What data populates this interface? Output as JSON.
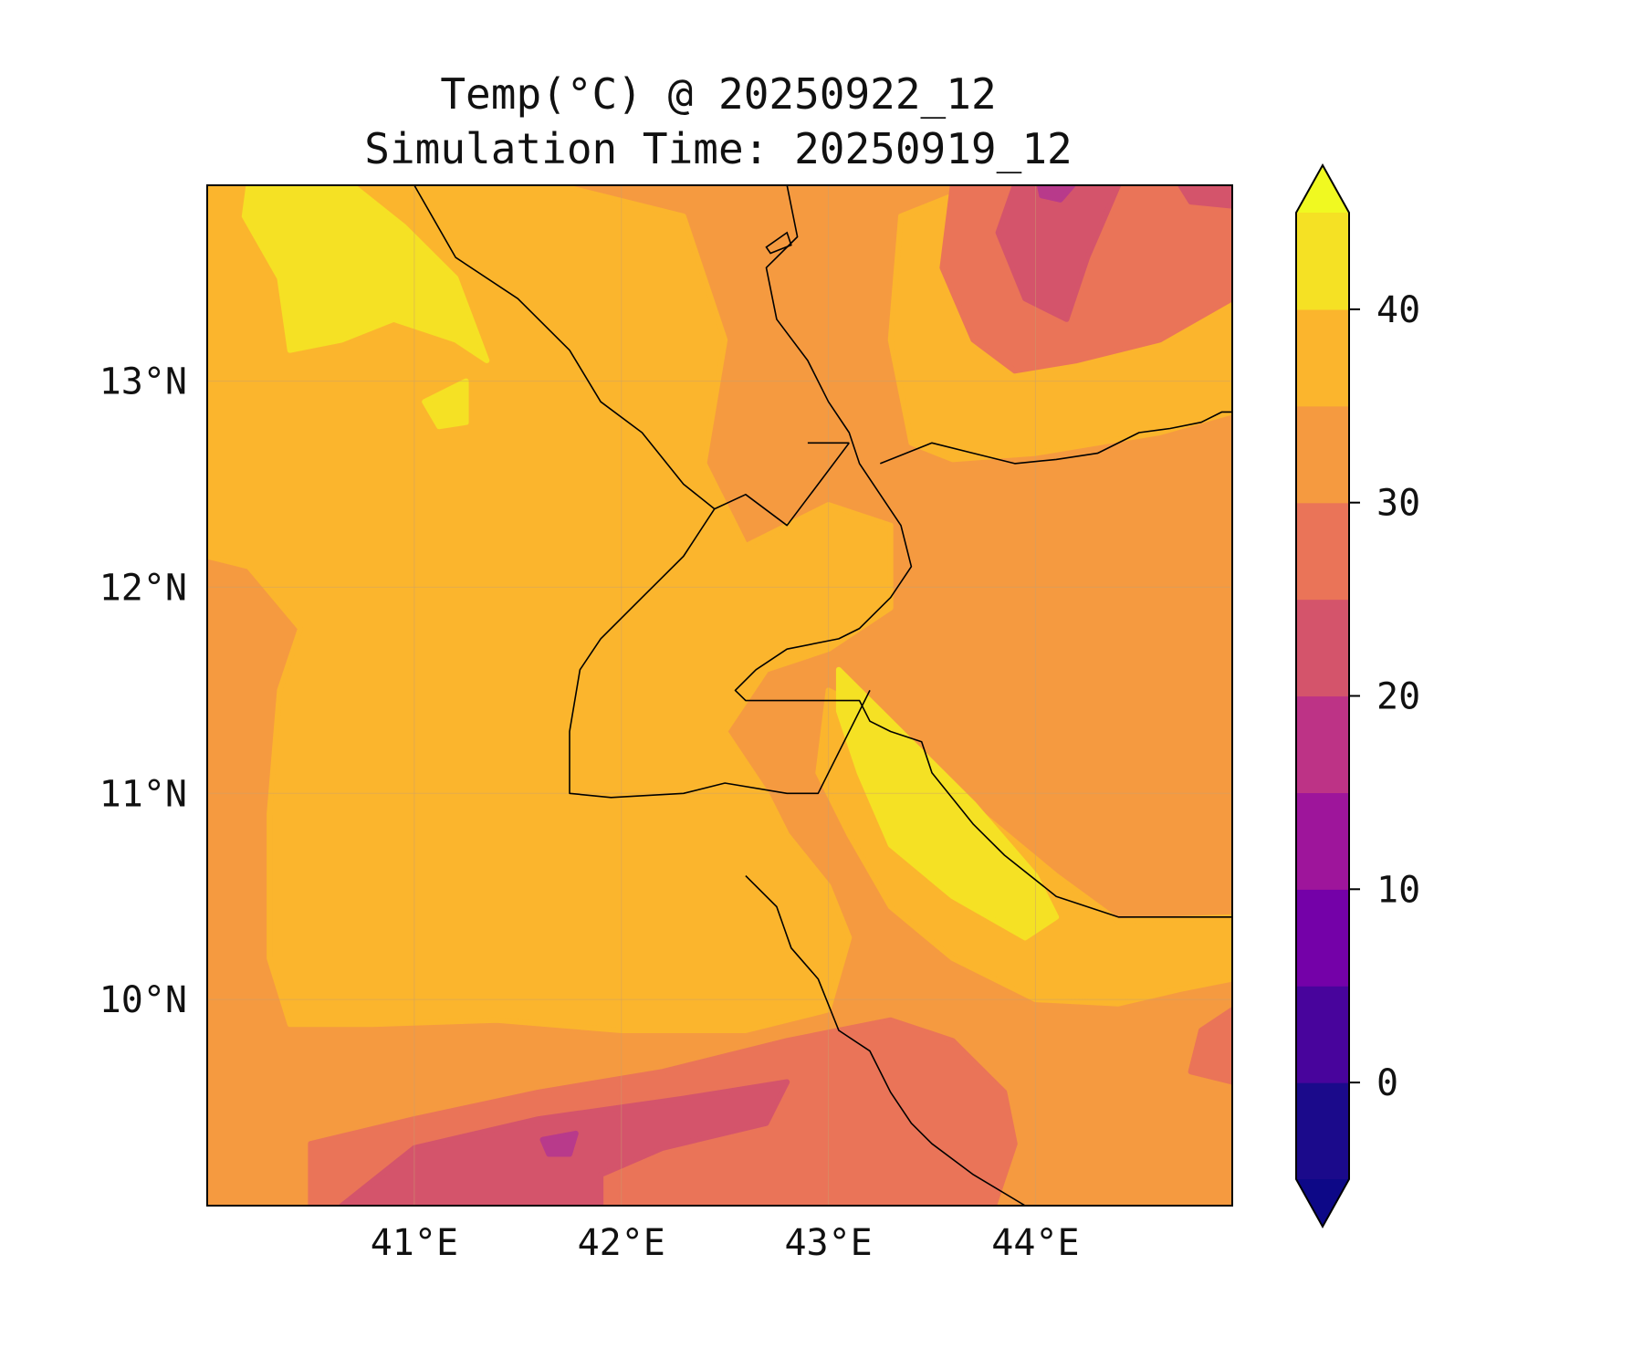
{
  "title": {
    "line1": "Temp(°C) @ 20250922_12",
    "line2": "Simulation Time: 20250919_12"
  },
  "map": {
    "lon_range": [
      40.0,
      44.95
    ],
    "lat_range": [
      9.0,
      13.95
    ],
    "lon_ticks": [
      {
        "value": 41,
        "label": "41°E"
      },
      {
        "value": 42,
        "label": "42°E"
      },
      {
        "value": 43,
        "label": "43°E"
      },
      {
        "value": 44,
        "label": "44°E"
      }
    ],
    "lat_ticks": [
      {
        "value": 13,
        "label": "13°N"
      },
      {
        "value": 12,
        "label": "12°N"
      },
      {
        "value": 11,
        "label": "11°N"
      },
      {
        "value": 10,
        "label": "10°N"
      }
    ],
    "gridlines": true,
    "background_color": "#f59a40",
    "regions": [
      {
        "name": "hot-highlands",
        "color": "#fbb52d",
        "points": [
          [
            40.0,
            13.95
          ],
          [
            41.7,
            13.95
          ],
          [
            42.3,
            13.8
          ],
          [
            42.5,
            13.2
          ],
          [
            42.4,
            12.6
          ],
          [
            42.6,
            12.2
          ],
          [
            43.0,
            12.4
          ],
          [
            43.3,
            12.3
          ],
          [
            43.3,
            11.9
          ],
          [
            43.0,
            11.7
          ],
          [
            42.7,
            11.6
          ],
          [
            42.5,
            11.3
          ],
          [
            42.7,
            11.0
          ],
          [
            42.8,
            10.8
          ],
          [
            43.0,
            10.55
          ],
          [
            43.1,
            10.3
          ],
          [
            43.0,
            9.95
          ],
          [
            42.6,
            9.85
          ],
          [
            42.0,
            9.85
          ],
          [
            41.4,
            9.9
          ],
          [
            40.8,
            9.88
          ],
          [
            40.4,
            9.88
          ],
          [
            40.3,
            10.2
          ],
          [
            40.3,
            10.9
          ],
          [
            40.35,
            11.5
          ],
          [
            40.45,
            11.8
          ],
          [
            40.2,
            12.1
          ],
          [
            40.0,
            12.15
          ]
        ]
      },
      {
        "name": "warm-ne-coast",
        "color": "#fbb52d",
        "points": [
          [
            43.35,
            13.8
          ],
          [
            43.6,
            13.9
          ],
          [
            44.95,
            13.95
          ],
          [
            44.95,
            12.85
          ],
          [
            44.6,
            12.75
          ],
          [
            44.3,
            12.7
          ],
          [
            44.0,
            12.65
          ],
          [
            43.6,
            12.62
          ],
          [
            43.4,
            12.7
          ],
          [
            43.3,
            13.2
          ]
        ]
      },
      {
        "name": "warm-se-coast",
        "color": "#fbb52d",
        "points": [
          [
            43.0,
            11.5
          ],
          [
            43.3,
            11.35
          ],
          [
            43.5,
            11.1
          ],
          [
            43.8,
            10.85
          ],
          [
            44.1,
            10.6
          ],
          [
            44.4,
            10.38
          ],
          [
            44.95,
            10.4
          ],
          [
            44.95,
            10.1
          ],
          [
            44.7,
            10.05
          ],
          [
            44.4,
            9.98
          ],
          [
            44.0,
            10.0
          ],
          [
            43.6,
            10.2
          ],
          [
            43.3,
            10.45
          ],
          [
            43.1,
            10.8
          ],
          [
            42.95,
            11.1
          ]
        ]
      },
      {
        "name": "cool-mountain-s",
        "color": "#ea7458",
        "points": [
          [
            40.5,
            9.0
          ],
          [
            40.5,
            9.3
          ],
          [
            41.0,
            9.42
          ],
          [
            41.6,
            9.55
          ],
          [
            42.2,
            9.65
          ],
          [
            42.8,
            9.8
          ],
          [
            43.3,
            9.9
          ],
          [
            43.6,
            9.8
          ],
          [
            43.85,
            9.55
          ],
          [
            43.9,
            9.3
          ],
          [
            43.8,
            9.0
          ]
        ]
      },
      {
        "name": "cool-se-patch",
        "color": "#ea7458",
        "points": [
          [
            44.75,
            9.65
          ],
          [
            44.95,
            9.6
          ],
          [
            44.95,
            9.95
          ],
          [
            44.8,
            9.85
          ]
        ]
      },
      {
        "name": "cool-ne-highland",
        "color": "#ea7458",
        "points": [
          [
            43.6,
            13.95
          ],
          [
            44.95,
            13.95
          ],
          [
            44.95,
            13.4
          ],
          [
            44.6,
            13.2
          ],
          [
            44.2,
            13.1
          ],
          [
            43.9,
            13.05
          ],
          [
            43.7,
            13.2
          ],
          [
            43.55,
            13.55
          ]
        ]
      },
      {
        "name": "cold-mountain-s",
        "color": "#d4546b",
        "points": [
          [
            40.65,
            9.0
          ],
          [
            41.0,
            9.28
          ],
          [
            41.6,
            9.42
          ],
          [
            42.3,
            9.52
          ],
          [
            42.8,
            9.6
          ],
          [
            42.7,
            9.4
          ],
          [
            42.2,
            9.28
          ],
          [
            41.9,
            9.15
          ],
          [
            41.9,
            9.0
          ]
        ]
      },
      {
        "name": "cold-ne-highland",
        "color": "#d4546b",
        "points": [
          [
            43.9,
            13.95
          ],
          [
            44.4,
            13.95
          ],
          [
            44.25,
            13.6
          ],
          [
            44.15,
            13.3
          ],
          [
            43.95,
            13.4
          ],
          [
            43.82,
            13.72
          ]
        ]
      },
      {
        "name": "cold-e-patch",
        "color": "#d4546b",
        "points": [
          [
            44.7,
            13.95
          ],
          [
            44.95,
            13.95
          ],
          [
            44.95,
            13.85
          ],
          [
            44.75,
            13.87
          ]
        ]
      },
      {
        "name": "coldest-core-s",
        "color": "#b83a8b",
        "points": [
          [
            41.62,
            9.32
          ],
          [
            41.78,
            9.35
          ],
          [
            41.75,
            9.25
          ],
          [
            41.65,
            9.25
          ]
        ]
      },
      {
        "name": "coldest-core-ne",
        "color": "#b83a8b",
        "points": [
          [
            44.02,
            13.95
          ],
          [
            44.18,
            13.95
          ],
          [
            44.12,
            13.88
          ],
          [
            44.03,
            13.9
          ]
        ]
      },
      {
        "name": "hottest-nw",
        "color": "#f5e124",
        "points": [
          [
            40.2,
            13.95
          ],
          [
            40.7,
            13.95
          ],
          [
            40.95,
            13.75
          ],
          [
            41.2,
            13.5
          ],
          [
            41.35,
            13.1
          ],
          [
            41.2,
            13.2
          ],
          [
            40.9,
            13.3
          ],
          [
            40.65,
            13.2
          ],
          [
            40.4,
            13.15
          ],
          [
            40.35,
            13.5
          ],
          [
            40.18,
            13.8
          ]
        ]
      },
      {
        "name": "hottest-se",
        "color": "#f5e124",
        "points": [
          [
            43.05,
            11.6
          ],
          [
            43.25,
            11.4
          ],
          [
            43.45,
            11.2
          ],
          [
            43.7,
            10.95
          ],
          [
            44.0,
            10.6
          ],
          [
            44.1,
            10.4
          ],
          [
            43.95,
            10.3
          ],
          [
            43.6,
            10.5
          ],
          [
            43.3,
            10.75
          ],
          [
            43.15,
            11.1
          ],
          [
            43.05,
            11.4
          ]
        ]
      },
      {
        "name": "hottest-spot",
        "color": "#f5e124",
        "points": [
          [
            41.05,
            12.9
          ],
          [
            41.25,
            13.0
          ],
          [
            41.25,
            12.8
          ],
          [
            41.12,
            12.78
          ]
        ]
      }
    ],
    "coastline": [
      [
        42.8,
        13.95
      ],
      [
        42.85,
        13.7
      ],
      [
        42.7,
        13.55
      ],
      [
        42.75,
        13.3
      ],
      [
        42.9,
        13.1
      ],
      [
        43.0,
        12.9
      ],
      [
        43.1,
        12.75
      ],
      [
        43.15,
        12.6
      ],
      [
        43.25,
        12.45
      ],
      [
        43.35,
        12.3
      ],
      [
        43.4,
        12.1
      ],
      [
        43.3,
        11.95
      ],
      [
        43.15,
        11.8
      ],
      [
        43.05,
        11.75
      ],
      [
        42.8,
        11.7
      ],
      [
        42.65,
        11.6
      ],
      [
        42.55,
        11.5
      ],
      [
        42.6,
        11.45
      ],
      [
        42.9,
        11.45
      ],
      [
        43.05,
        11.45
      ],
      [
        43.15,
        11.45
      ],
      [
        43.2,
        11.35
      ],
      [
        43.3,
        11.3
      ],
      [
        43.45,
        11.25
      ],
      [
        43.5,
        11.1
      ],
      [
        43.7,
        10.85
      ],
      [
        43.85,
        10.7
      ],
      [
        44.1,
        10.5
      ],
      [
        44.4,
        10.4
      ],
      [
        44.6,
        10.4
      ],
      [
        44.95,
        10.4
      ]
    ],
    "coastline_north": [
      [
        43.25,
        12.6
      ],
      [
        43.5,
        12.7
      ],
      [
        43.7,
        12.65
      ],
      [
        43.9,
        12.6
      ],
      [
        44.1,
        12.62
      ],
      [
        44.3,
        12.65
      ],
      [
        44.5,
        12.75
      ],
      [
        44.65,
        12.77
      ],
      [
        44.8,
        12.8
      ],
      [
        44.9,
        12.85
      ],
      [
        44.95,
        12.85
      ]
    ],
    "coastline_nw": [
      [
        41.0,
        13.95
      ],
      [
        41.2,
        13.6
      ],
      [
        41.5,
        13.4
      ],
      [
        41.75,
        13.15
      ],
      [
        41.9,
        12.9
      ],
      [
        42.1,
        12.75
      ],
      [
        42.3,
        12.5
      ],
      [
        42.45,
        12.38
      ],
      [
        42.6,
        12.45
      ],
      [
        42.8,
        12.3
      ],
      [
        42.95,
        12.5
      ],
      [
        43.1,
        12.7
      ]
    ],
    "borders": [
      [
        [
          42.45,
          12.38
        ],
        [
          42.3,
          12.15
        ],
        [
          42.1,
          11.95
        ],
        [
          41.9,
          11.75
        ],
        [
          41.8,
          11.6
        ],
        [
          41.75,
          11.3
        ],
        [
          41.75,
          11.0
        ],
        [
          41.95,
          10.98
        ],
        [
          42.3,
          11.0
        ],
        [
          42.5,
          11.05
        ],
        [
          42.8,
          11.0
        ],
        [
          42.95,
          11.0
        ],
        [
          43.2,
          11.5
        ]
      ],
      [
        [
          42.9,
          12.7
        ],
        [
          43.1,
          12.7
        ]
      ],
      [
        [
          42.6,
          10.6
        ],
        [
          42.75,
          10.45
        ],
        [
          42.82,
          10.25
        ],
        [
          42.95,
          10.1
        ],
        [
          43.05,
          9.85
        ],
        [
          43.2,
          9.75
        ],
        [
          43.3,
          9.55
        ],
        [
          43.4,
          9.4
        ],
        [
          43.5,
          9.3
        ],
        [
          43.7,
          9.15
        ],
        [
          43.95,
          9.0
        ]
      ]
    ],
    "islands": [
      [
        [
          42.7,
          13.65
        ],
        [
          42.8,
          13.72
        ],
        [
          42.82,
          13.66
        ],
        [
          42.72,
          13.62
        ]
      ]
    ]
  },
  "colorbar": {
    "levels": [
      -5,
      0,
      5,
      10,
      15,
      20,
      25,
      30,
      35,
      40,
      45
    ],
    "colors": [
      "#1b0a8b",
      "#48049c",
      "#7401a8",
      "#9e159b",
      "#bd3386",
      "#d4546b",
      "#ea7458",
      "#f59a40",
      "#fbb52d",
      "#f5e124"
    ],
    "under_color": "#0d0887",
    "over_color": "#f0f921",
    "tick_values": [
      0,
      10,
      20,
      30,
      40
    ],
    "tick_labels": [
      "0",
      "10",
      "20",
      "30",
      "40"
    ]
  }
}
